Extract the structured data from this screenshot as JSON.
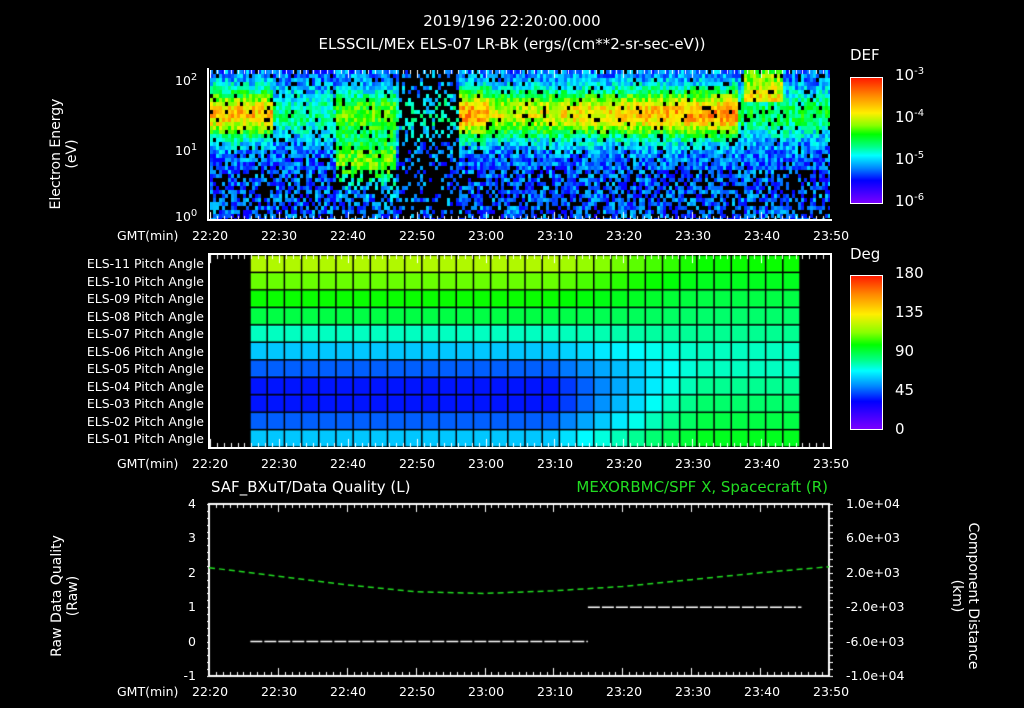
{
  "header": {
    "datetime": "2019/196 22:20:00.000",
    "subtitle": "ELSSCIL/MEx ELS-07 LR-Bk  (ergs/(cm**2-sr-sec-eV))"
  },
  "x_axis": {
    "label": "GMT(min)",
    "ticks": [
      "22:20",
      "22:30",
      "22:40",
      "22:50",
      "23:00",
      "23:10",
      "23:20",
      "23:30",
      "23:40",
      "23:50"
    ]
  },
  "chart_data": [
    {
      "type": "heatmap",
      "title": "ELSSCIL/MEx ELS-07 LR-Bk  (ergs/(cm**2-sr-sec-eV))",
      "xlabel": "GMT(min)",
      "ylabel": "Electron Energy (eV)",
      "yscale": "log",
      "ylim": [
        1,
        150
      ],
      "y_ticks": [
        "10^0",
        "10^1",
        "10^2"
      ],
      "x_range": [
        "22:20",
        "23:50"
      ],
      "colorbar": {
        "label": "DEF",
        "scale": "log",
        "range": [
          1e-06,
          0.001
        ],
        "ticks": [
          "10^-6",
          "10^-5",
          "10^-4",
          "10^-3"
        ]
      },
      "features": [
        {
          "time": "22:20-22:27",
          "energy_eV": "20-60",
          "level": "1e-4"
        },
        {
          "time": "22:31-22:40",
          "energy_eV": "5-30",
          "level": "3e-5"
        },
        {
          "time": "22:48-22:56",
          "energy_eV": "3-150",
          "level": "1e-4",
          "note": "vertical bursts"
        },
        {
          "time": "23:00-23:45",
          "energy_eV": "20-100",
          "level": "1e-4 to 3e-4"
        },
        {
          "time": "23:36-23:39",
          "energy_eV": "60-100",
          "level": "7e-4",
          "note": "peak"
        }
      ]
    },
    {
      "type": "heatmap",
      "title": "Pitch Angle",
      "xlabel": "GMT(min)",
      "rows": [
        "ELS-11 Pitch Angle",
        "ELS-10 Pitch Angle",
        "ELS-09 Pitch Angle",
        "ELS-08 Pitch Angle",
        "ELS-07 Pitch Angle",
        "ELS-06 Pitch Angle",
        "ELS-05 Pitch Angle",
        "ELS-04 Pitch Angle",
        "ELS-03 Pitch Angle",
        "ELS-02 Pitch Angle",
        "ELS-01 Pitch Angle"
      ],
      "data_range": [
        "22:26",
        "23:46"
      ],
      "colorbar": {
        "label": "Deg",
        "range": [
          0,
          180
        ],
        "ticks": [
          0,
          45,
          90,
          135,
          180
        ]
      },
      "values_start_deg": [
        120,
        110,
        100,
        90,
        75,
        60,
        45,
        35,
        35,
        45,
        60
      ],
      "values_end_deg": [
        100,
        95,
        90,
        85,
        80,
        75,
        75,
        80,
        85,
        90,
        95
      ]
    },
    {
      "type": "line",
      "title_left": "SAF_BXuT/Data Quality (L)",
      "title_right": "MEXORBMC/SPF X, Spacecraft (R)",
      "xlabel": "GMT(min)",
      "ylabel_left": "Raw Data Quality (Raw)",
      "ylabel_right": "Component Distance (km)",
      "ylim_left": [
        -1,
        4
      ],
      "yticks_left": [
        "4",
        "3",
        "2",
        "1",
        "0",
        "-1"
      ],
      "ylim_right": [
        -10000,
        10000
      ],
      "yticks_right": [
        "1.0e+04",
        "6.0e+03",
        "2.0e+03",
        "-2.0e+03",
        "-6.0e+03",
        "-1.0e+04"
      ],
      "series": [
        {
          "name": "Data Quality",
          "axis": "left",
          "color": "#ffffff",
          "points": [
            [
              "22:26",
              0
            ],
            [
              "23:15",
              0
            ],
            [
              "23:15",
              1
            ],
            [
              "23:46",
              1
            ]
          ]
        },
        {
          "name": "Spacecraft X",
          "axis": "right",
          "color": "#22dd22",
          "style": "dashed",
          "points": [
            [
              "22:20",
              2600
            ],
            [
              "22:30",
              1600
            ],
            [
              "22:40",
              600
            ],
            [
              "22:50",
              -200
            ],
            [
              "23:00",
              -400
            ],
            [
              "23:10",
              -100
            ],
            [
              "23:20",
              400
            ],
            [
              "23:30",
              1200
            ],
            [
              "23:40",
              2000
            ],
            [
              "23:50",
              2700
            ]
          ]
        }
      ]
    }
  ],
  "panel1": {
    "ylabel": "Electron Energy",
    "ylabel_unit": "(eV)",
    "yticks": [
      {
        "base": "10",
        "exp": "2"
      },
      {
        "base": "10",
        "exp": "1"
      },
      {
        "base": "10",
        "exp": "0"
      }
    ],
    "colorbar_label": "DEF",
    "colorbar_ticks": [
      {
        "base": "10",
        "exp": "-3"
      },
      {
        "base": "10",
        "exp": "-4"
      },
      {
        "base": "10",
        "exp": "-5"
      },
      {
        "base": "10",
        "exp": "-6"
      }
    ]
  },
  "panel2": {
    "rows": [
      "ELS-11 Pitch Angle",
      "ELS-10 Pitch Angle",
      "ELS-09 Pitch Angle",
      "ELS-08 Pitch Angle",
      "ELS-07 Pitch Angle",
      "ELS-06 Pitch Angle",
      "ELS-05 Pitch Angle",
      "ELS-04 Pitch Angle",
      "ELS-03 Pitch Angle",
      "ELS-02 Pitch Angle",
      "ELS-01 Pitch Angle"
    ],
    "colorbar_label": "Deg",
    "colorbar_ticks": [
      "180",
      "135",
      "90",
      "45",
      "0"
    ]
  },
  "panel3": {
    "title_left": "SAF_BXuT/Data Quality (L)",
    "title_right": "MEXORBMC/SPF X, Spacecraft (R)",
    "title_right_color": "#22dd22",
    "ylabel_left": "Raw Data Quality",
    "ylabel_left_unit": "(Raw)",
    "ylabel_right": "Component Distance",
    "ylabel_right_unit": "(km)",
    "yticks_left": [
      "4",
      "3",
      "2",
      "1",
      "0",
      "-1"
    ],
    "yticks_right": [
      "1.0e+04",
      "6.0e+03",
      "2.0e+03",
      "-2.0e+03",
      "-6.0e+03",
      "-1.0e+04"
    ]
  }
}
